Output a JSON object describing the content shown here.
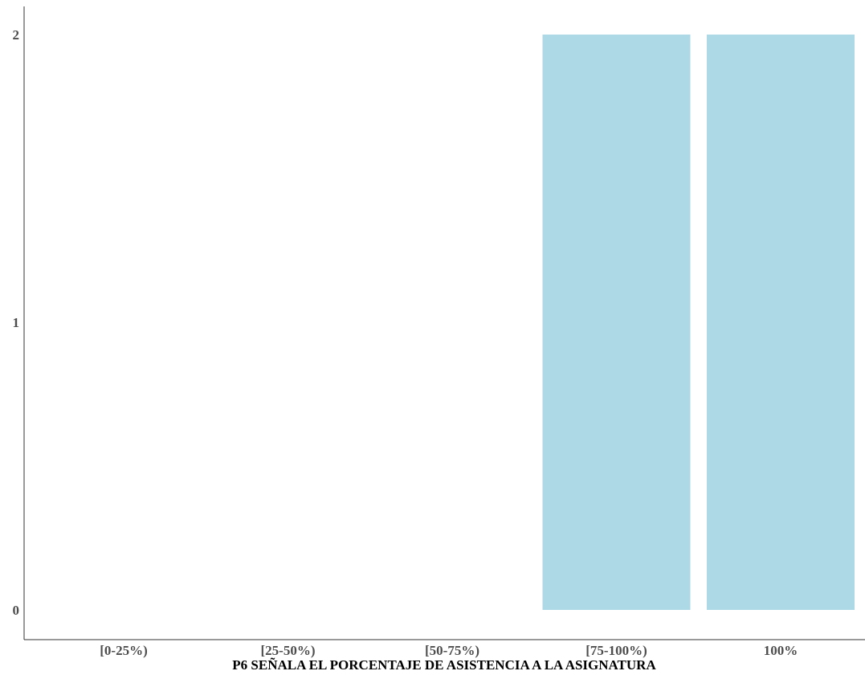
{
  "chart_data": {
    "type": "bar",
    "categories": [
      "[0-25%)",
      "[25-50%)",
      "[50-75%)",
      "[75-100%)",
      "100%"
    ],
    "values": [
      0,
      0,
      0,
      2,
      2
    ],
    "xlabel": "P6 SEÑALA EL PORCENTAJE DE ASISTENCIA A LA ASIGNATURA",
    "ylabel": "",
    "ylim": [
      0,
      2
    ],
    "yticks": [
      "0",
      "1",
      "2"
    ],
    "grid": false,
    "bar_color": "#ADD8E6",
    "axis_color": "#333333"
  }
}
